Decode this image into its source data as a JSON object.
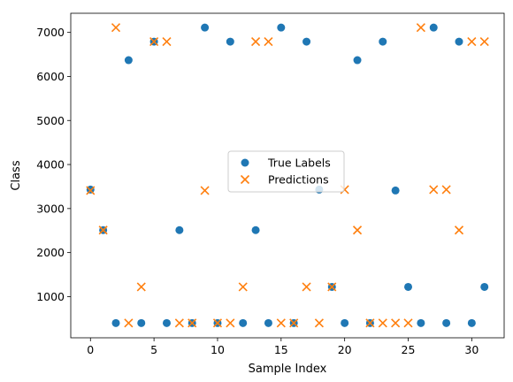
{
  "chart_data": {
    "type": "scatter",
    "title": "",
    "xlabel": "Sample Index",
    "ylabel": "Class",
    "xlim": [
      -1.55,
      32.55
    ],
    "ylim": [
      65,
      7435
    ],
    "xticks": [
      0,
      5,
      10,
      15,
      20,
      25,
      30
    ],
    "yticks": [
      1000,
      2000,
      3000,
      4000,
      5000,
      6000,
      7000
    ],
    "grid": false,
    "legend_position": "center",
    "series": [
      {
        "name": "True Labels",
        "marker": "circle",
        "color": "#1f77b4",
        "x": [
          0,
          1,
          2,
          3,
          4,
          5,
          6,
          7,
          8,
          9,
          10,
          11,
          12,
          13,
          14,
          15,
          16,
          17,
          18,
          19,
          20,
          21,
          22,
          23,
          24,
          25,
          26,
          27,
          28,
          29,
          30,
          31
        ],
        "y": [
          3430,
          2510,
          400,
          6370,
          400,
          6790,
          400,
          2510,
          400,
          7110,
          400,
          6790,
          400,
          2510,
          400,
          7110,
          400,
          6790,
          3430,
          1220,
          400,
          6370,
          400,
          6790,
          3410,
          1220,
          400,
          7110,
          400,
          6790,
          400,
          1220
        ]
      },
      {
        "name": "Predictions",
        "marker": "x",
        "color": "#ff7f0e",
        "x": [
          0,
          1,
          2,
          3,
          4,
          5,
          6,
          7,
          8,
          9,
          10,
          11,
          12,
          13,
          14,
          15,
          16,
          17,
          18,
          19,
          20,
          21,
          22,
          23,
          24,
          25,
          26,
          27,
          28,
          29,
          30,
          31
        ],
        "y": [
          3410,
          2510,
          7110,
          400,
          1220,
          6790,
          6790,
          400,
          400,
          3410,
          400,
          400,
          1220,
          6790,
          6790,
          400,
          400,
          1220,
          400,
          1220,
          3430,
          2510,
          400,
          400,
          400,
          400,
          7110,
          3430,
          3430,
          2510,
          6790,
          6790
        ]
      }
    ]
  }
}
